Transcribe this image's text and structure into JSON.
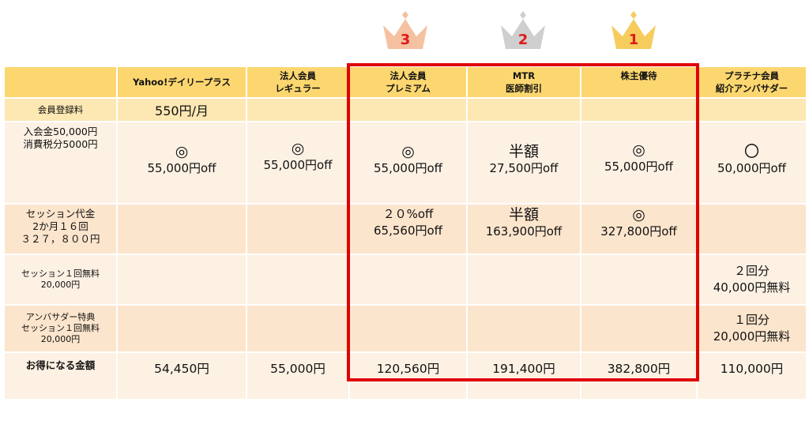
{
  "ranks": [
    {
      "rank": "3",
      "color": "#f5c1a0"
    },
    {
      "rank": "2",
      "color": "#cfcfcf"
    },
    {
      "rank": "1",
      "color": "#f6cd5c"
    }
  ],
  "columns": [
    "Yahoo!デイリープラス",
    [
      "法人会員",
      "レギュラー"
    ],
    [
      "法人会員",
      "プレミアム"
    ],
    [
      "MTR",
      "医師割引"
    ],
    "株主優待",
    [
      "プラチナ会員",
      "紹介アンバサダー"
    ]
  ],
  "header": {
    "yahoo": "Yahoo!デイリープラス",
    "regular_1": "法人会員",
    "regular_2": "レギュラー",
    "premium_1": "法人会員",
    "premium_2": "プレミアム",
    "mtr_1": "MTR",
    "mtr_2": "医師割引",
    "holder": "株主優待",
    "platinum_1": "プラチナ会員",
    "platinum_2": "紹介アンバサダー"
  },
  "rows": {
    "fee": {
      "label": "会員登録料",
      "yahoo": "550円/月"
    },
    "entry": {
      "label_1": "入会金50,000円",
      "label_2": "消費税分5000円",
      "yahoo_sym": "◎",
      "yahoo_val": "55,000円off",
      "regular_sym": "◎",
      "regular_val": "55,000円off",
      "premium_sym": "◎",
      "premium_val": "55,000円off",
      "mtr_sym": "半額",
      "mtr_val": "27,500円off",
      "holder_sym": "◎",
      "holder_val": "55,000円off",
      "platinum_sym": "〇",
      "platinum_val": "50,000円off"
    },
    "session": {
      "label_1": "セッション代金",
      "label_2": "2か月１６回",
      "label_3": "３２７，８００円",
      "premium_sym": "２０%off",
      "premium_val": "65,560円off",
      "mtr_sym": "半額",
      "mtr_val": "163,900円off",
      "holder_sym": "◎",
      "holder_val": "327,800円off"
    },
    "free": {
      "label_1": "セッション１回無料",
      "label_2": "20,000円",
      "platinum_1": "２回分",
      "platinum_2": "40,000円無料"
    },
    "ambassador": {
      "label_1": "アンバサダー特典",
      "label_2": "セッション１回無料",
      "label_3": "20,000円",
      "platinum_1": "１回分",
      "platinum_2": "20,000円無料"
    },
    "total": {
      "label": "お得になる金額",
      "yahoo": "54,450円",
      "regular": "55,000円",
      "premium": "120,560円",
      "mtr": "191,400円",
      "holder": "382,800円",
      "platinum": "110,000円"
    }
  }
}
